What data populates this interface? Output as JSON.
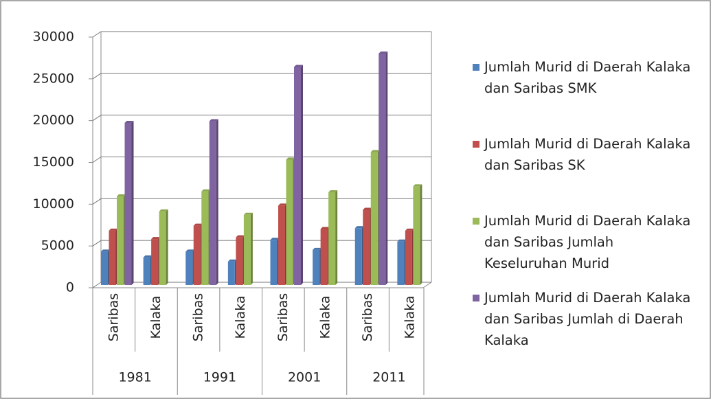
{
  "chart_data": {
    "type": "bar",
    "categories": [
      "Saribas",
      "Kalaka",
      "Saribas",
      "Kalaka",
      "Saribas",
      "Kalaka",
      "Saribas",
      "Kalaka"
    ],
    "groups": [
      "1981",
      "1991",
      "2001",
      "2011"
    ],
    "series": [
      {
        "name": "Jumlah Murid di Daerah Kalaka dan Saribas SMK",
        "color": "#4f81bd",
        "values": [
          4000,
          3300,
          4000,
          2800,
          5400,
          4200,
          6800,
          5200
        ]
      },
      {
        "name": "Jumlah Murid di Daerah Kalaka dan Saribas SK",
        "color": "#c0504d",
        "values": [
          6500,
          5500,
          7100,
          5700,
          9500,
          6700,
          9000,
          6500
        ]
      },
      {
        "name": "Jumlah Murid di Daerah Kalaka dan Saribas Jumlah Keseluruhan Murid",
        "color": "#9bbb59",
        "values": [
          10600,
          8800,
          11200,
          8400,
          15000,
          11100,
          15900,
          11800
        ]
      },
      {
        "name": "Jumlah Murid di Daerah Kalaka dan Saribas Jumlah di Daerah Kalaka",
        "color": "#8064a2",
        "values": [
          19400,
          null,
          19600,
          null,
          26100,
          null,
          27700,
          null
        ]
      }
    ],
    "ylim": [
      0,
      30000
    ],
    "yticks": [
      0,
      5000,
      10000,
      15000,
      20000,
      25000,
      30000
    ],
    "grid": true
  }
}
